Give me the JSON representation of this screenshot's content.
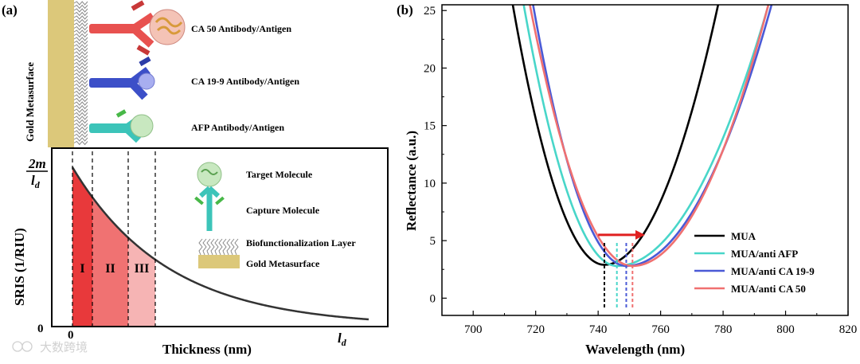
{
  "figure": {
    "panel_a": {
      "label": "(a)",
      "metasurface_label": "Gold Metasurface",
      "antibodies": [
        {
          "label": "CA 50 Antibody/Antigen",
          "color": "#e8514f"
        },
        {
          "label": "CA 19-9 Antibody/Antigen",
          "color": "#3c4fc8"
        },
        {
          "label": "AFP Antibody/Antigen",
          "color": "#3cc4b9"
        }
      ],
      "legend": {
        "target": "Target Molecule",
        "capture": "Capture Molecule",
        "biofunc": "Biofunctionalization Layer",
        "gold": "Gold Metasurface"
      },
      "chart_data": {
        "type": "area",
        "title": "",
        "xlabel": "Thickness (nm)",
        "ylabel": "SRIS (1/RIU)",
        "x_ticks": [
          "0",
          "l_d"
        ],
        "y_ticks": [
          "0",
          "2m/l_d"
        ],
        "y_top_tick": {
          "num": "2m",
          "den": "l",
          "sub": "d"
        },
        "x_end_tick": {
          "main": "l",
          "sub": "d"
        },
        "curve": "exponential decay from 2m/l_d at thickness 0",
        "regions": [
          {
            "label": "I",
            "color": "#e8393b"
          },
          {
            "label": "II",
            "color": "#f07272"
          },
          {
            "label": "III",
            "color": "#f6b4b4"
          }
        ]
      }
    },
    "panel_b": {
      "label": "(b)",
      "chart_data": {
        "type": "line",
        "title": "",
        "xlabel": "Wavelength (nm)",
        "ylabel": "Reflectance (a.u.)",
        "xlim": [
          690,
          820
        ],
        "ylim": [
          -1.5,
          25.5
        ],
        "x_ticks": [
          700,
          720,
          740,
          760,
          780,
          800,
          820
        ],
        "y_ticks": [
          0,
          5,
          10,
          15,
          20,
          25
        ],
        "legend_position": "bottom-right",
        "series": [
          {
            "name": "MUA",
            "color": "#000000",
            "min_x": 742,
            "min_y": 2.9,
            "left_x25": 713,
            "right_x25": 778
          },
          {
            "name": "MUA/anti AFP",
            "color": "#48d6c9",
            "min_x": 746,
            "min_y": 2.8,
            "left_x25": 716.5,
            "right_x25": 794
          },
          {
            "name": "MUA/anti CA 19-9",
            "color": "#4a5ad6",
            "min_x": 749,
            "min_y": 2.8,
            "left_x25": 719.5,
            "right_x25": 795
          },
          {
            "name": "MUA/anti CA 50",
            "color": "#f07070",
            "min_x": 751,
            "min_y": 2.8,
            "left_x25": 718.5,
            "right_x25": 794
          }
        ],
        "arrow": {
          "from_x": 740,
          "to_x": 755,
          "y": 5.5,
          "color": "#e02020"
        }
      }
    },
    "watermark": "大数跨境"
  }
}
